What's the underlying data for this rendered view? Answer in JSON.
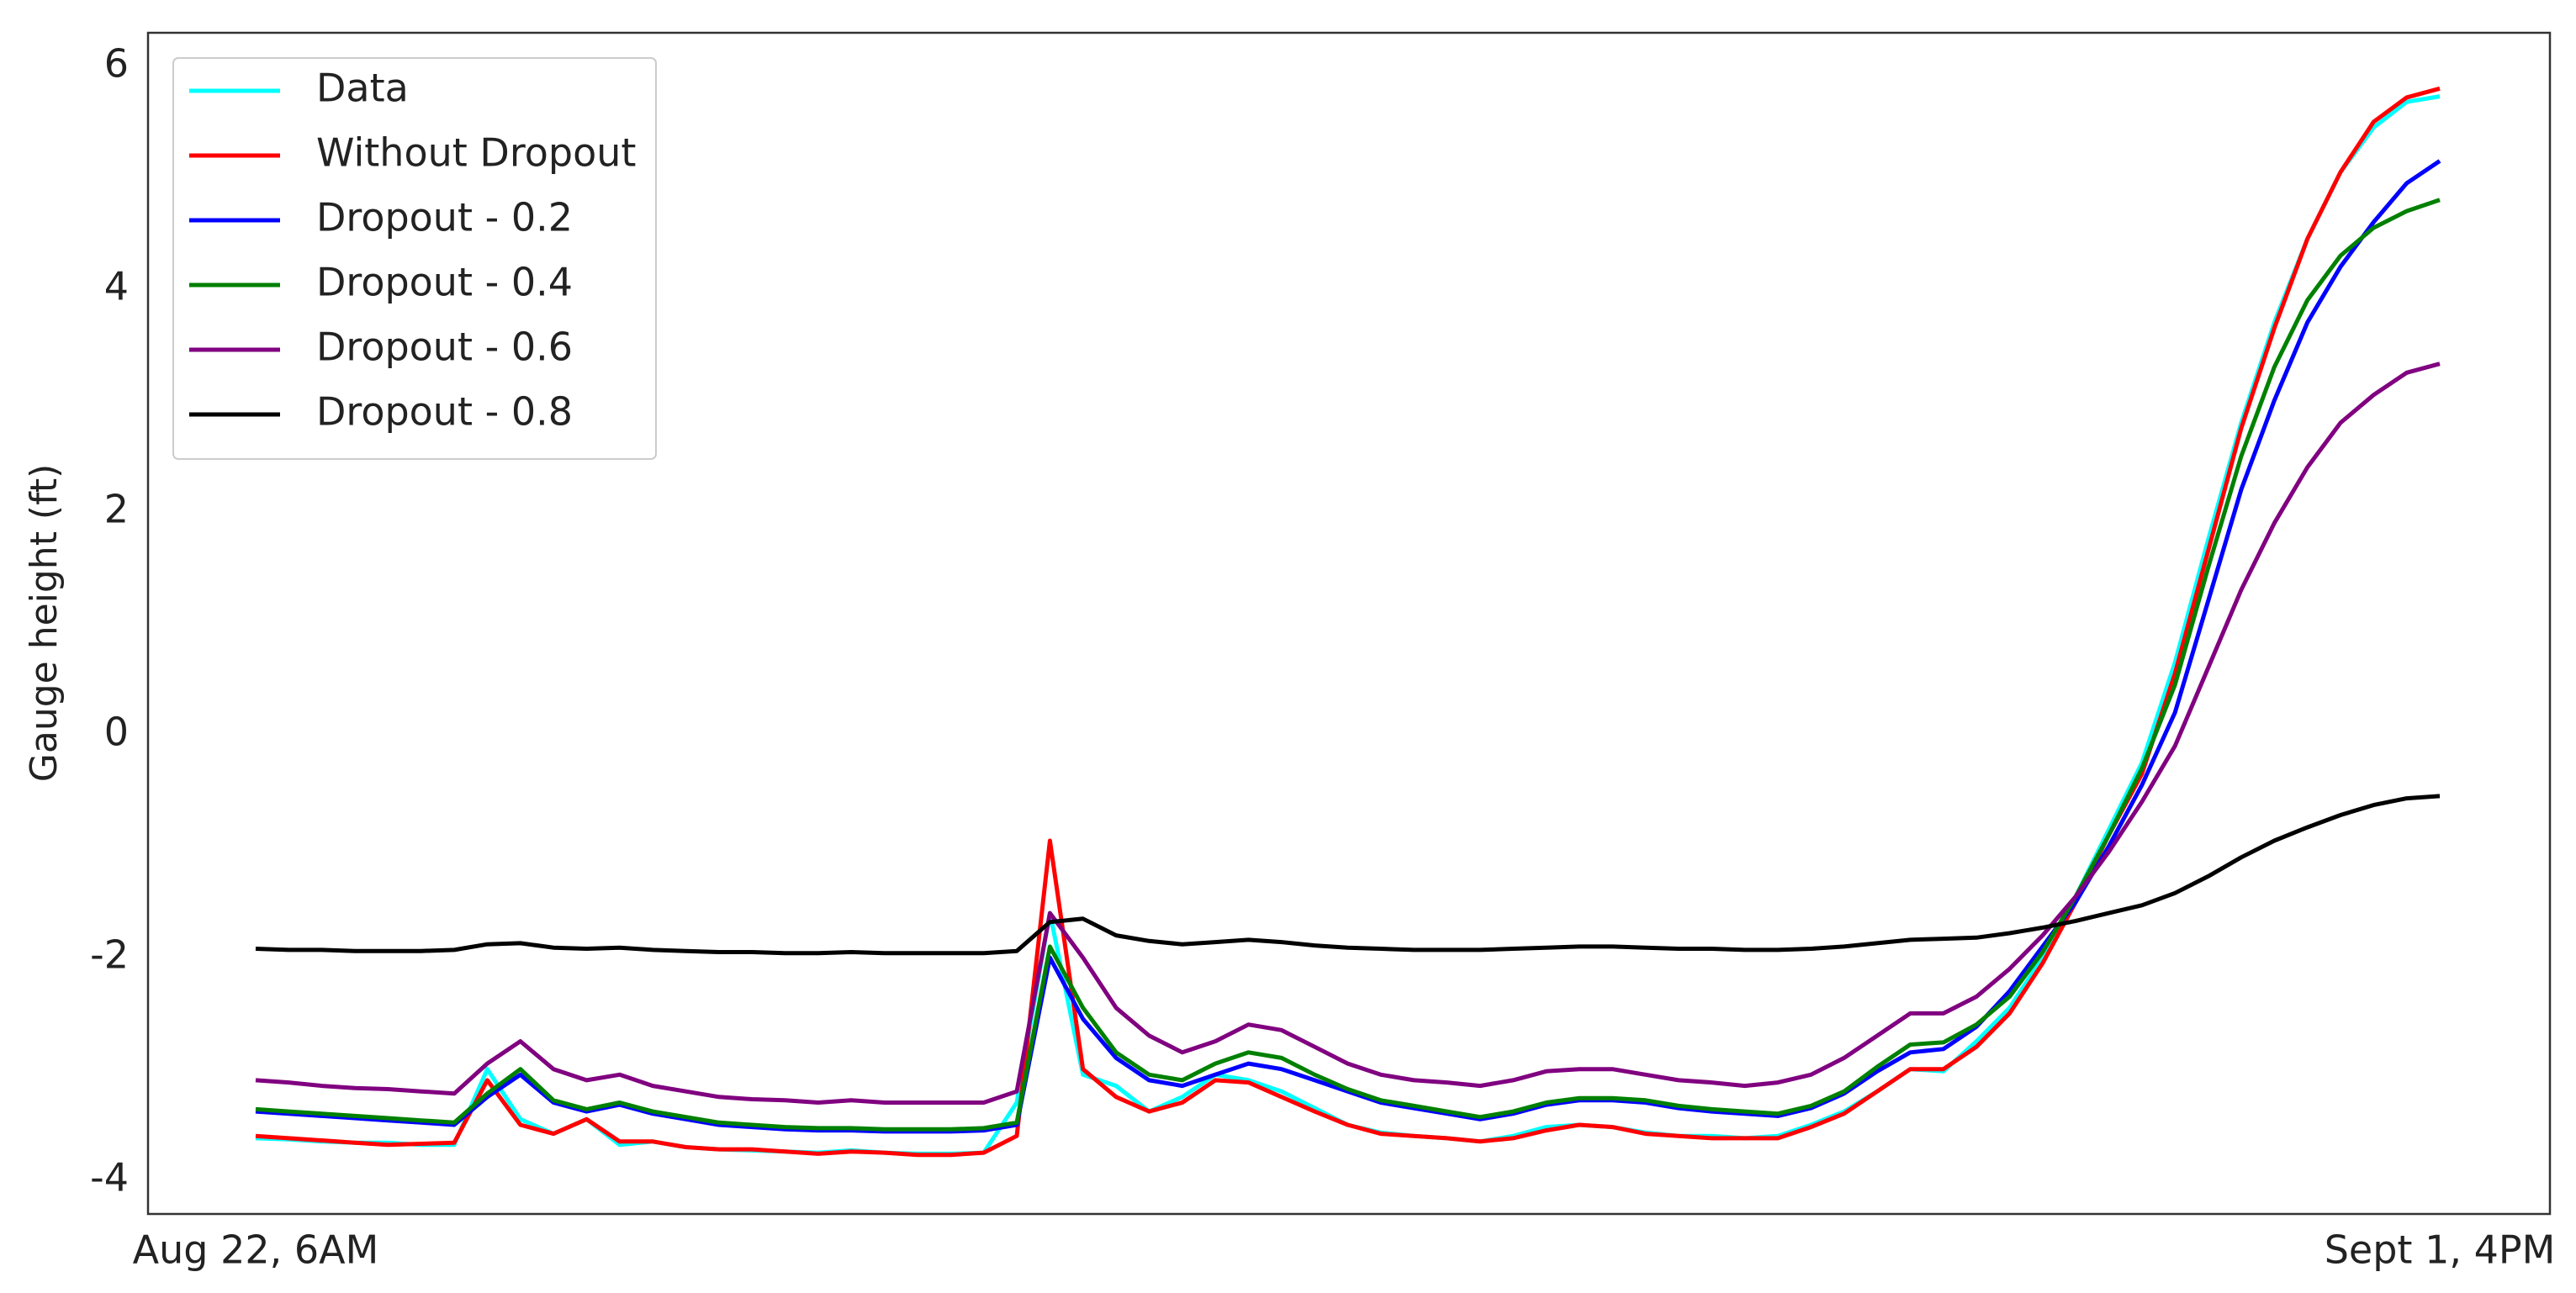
{
  "chart_data": {
    "type": "line",
    "y_label": "Gauge height (ft)",
    "categories": [
      "Aug 22, 6AM",
      null,
      null,
      null,
      null,
      null,
      null,
      null,
      null,
      null,
      null,
      null,
      null,
      null,
      null,
      null,
      null,
      null,
      null,
      null,
      null,
      null,
      null,
      null,
      null,
      null,
      null,
      null,
      null,
      null,
      null,
      null,
      null,
      null,
      null,
      null,
      null,
      null,
      null,
      null,
      null,
      null,
      null,
      null,
      null,
      null,
      null,
      null,
      null,
      null,
      null,
      null,
      null,
      null,
      null,
      null,
      null,
      null,
      null,
      null,
      null,
      null,
      null,
      null,
      null,
      null,
      "Sept 1, 4PM"
    ],
    "ylim": [
      -4.3,
      6.3
    ],
    "yticks": [
      -4,
      -2,
      0,
      2,
      4,
      6
    ],
    "grid": false,
    "legend": "upper left",
    "series": [
      {
        "name": "Data",
        "color": "#00ffff",
        "values": [
          -3.62,
          -3.63,
          -3.65,
          -3.66,
          -3.66,
          -3.68,
          -3.68,
          -3.0,
          -3.45,
          -3.58,
          -3.45,
          -3.68,
          -3.65,
          -3.7,
          -3.72,
          -3.73,
          -3.74,
          -3.75,
          -3.73,
          -3.75,
          -3.76,
          -3.76,
          -3.75,
          -3.3,
          -1.6,
          -3.05,
          -3.15,
          -3.38,
          -3.25,
          -3.05,
          -3.1,
          -3.2,
          -3.35,
          -3.5,
          -3.57,
          -3.6,
          -3.62,
          -3.65,
          -3.6,
          -3.52,
          -3.5,
          -3.52,
          -3.57,
          -3.6,
          -3.6,
          -3.62,
          -3.6,
          -3.5,
          -3.38,
          -3.2,
          -3.0,
          -3.02,
          -2.75,
          -2.45,
          -2.0,
          -1.45,
          -0.85,
          -0.25,
          0.65,
          1.75,
          2.8,
          3.7,
          4.45,
          5.05,
          5.45,
          5.68,
          5.73
        ]
      },
      {
        "name": "Without Dropout",
        "color": "#ff0000",
        "values": [
          -3.6,
          -3.62,
          -3.64,
          -3.66,
          -3.68,
          -3.67,
          -3.66,
          -3.1,
          -3.5,
          -3.58,
          -3.45,
          -3.65,
          -3.65,
          -3.7,
          -3.72,
          -3.72,
          -3.74,
          -3.76,
          -3.74,
          -3.75,
          -3.77,
          -3.77,
          -3.75,
          -3.6,
          -0.95,
          -3.0,
          -3.25,
          -3.38,
          -3.3,
          -3.1,
          -3.12,
          -3.25,
          -3.38,
          -3.5,
          -3.58,
          -3.6,
          -3.62,
          -3.65,
          -3.62,
          -3.55,
          -3.5,
          -3.52,
          -3.58,
          -3.6,
          -3.62,
          -3.62,
          -3.62,
          -3.52,
          -3.4,
          -3.2,
          -3.0,
          -3.0,
          -2.8,
          -2.5,
          -2.05,
          -1.5,
          -0.9,
          -0.35,
          0.55,
          1.65,
          2.75,
          3.65,
          4.45,
          5.05,
          5.5,
          5.72,
          5.8
        ]
      },
      {
        "name": "Dropout - 0.2",
        "color": "#0000ff",
        "values": [
          -3.38,
          -3.4,
          -3.42,
          -3.44,
          -3.46,
          -3.48,
          -3.5,
          -3.25,
          -3.05,
          -3.3,
          -3.38,
          -3.32,
          -3.4,
          -3.45,
          -3.5,
          -3.52,
          -3.54,
          -3.55,
          -3.55,
          -3.56,
          -3.56,
          -3.56,
          -3.55,
          -3.5,
          -2.0,
          -2.55,
          -2.9,
          -3.1,
          -3.15,
          -3.05,
          -2.95,
          -3.0,
          -3.1,
          -3.2,
          -3.3,
          -3.35,
          -3.4,
          -3.45,
          -3.4,
          -3.32,
          -3.28,
          -3.28,
          -3.3,
          -3.35,
          -3.38,
          -3.4,
          -3.42,
          -3.35,
          -3.22,
          -3.02,
          -2.85,
          -2.82,
          -2.62,
          -2.3,
          -1.9,
          -1.5,
          -1.0,
          -0.45,
          0.2,
          1.2,
          2.2,
          3.0,
          3.7,
          4.2,
          4.6,
          4.95,
          5.15
        ]
      },
      {
        "name": "Dropout - 0.4",
        "color": "#008000",
        "values": [
          -3.36,
          -3.38,
          -3.4,
          -3.42,
          -3.44,
          -3.46,
          -3.48,
          -3.22,
          -3.0,
          -3.28,
          -3.36,
          -3.3,
          -3.38,
          -3.43,
          -3.48,
          -3.5,
          -3.52,
          -3.53,
          -3.53,
          -3.54,
          -3.54,
          -3.54,
          -3.53,
          -3.48,
          -1.9,
          -2.45,
          -2.85,
          -3.05,
          -3.1,
          -2.95,
          -2.85,
          -2.9,
          -3.05,
          -3.18,
          -3.28,
          -3.33,
          -3.38,
          -3.43,
          -3.38,
          -3.3,
          -3.26,
          -3.26,
          -3.28,
          -3.33,
          -3.36,
          -3.38,
          -3.4,
          -3.33,
          -3.2,
          -2.98,
          -2.78,
          -2.76,
          -2.6,
          -2.35,
          -1.95,
          -1.45,
          -0.9,
          -0.3,
          0.45,
          1.5,
          2.5,
          3.3,
          3.9,
          4.3,
          4.55,
          4.7,
          4.8
        ]
      },
      {
        "name": "Dropout - 0.6",
        "color": "#800080",
        "values": [
          -3.1,
          -3.12,
          -3.15,
          -3.17,
          -3.18,
          -3.2,
          -3.22,
          -2.95,
          -2.75,
          -3.0,
          -3.1,
          -3.05,
          -3.15,
          -3.2,
          -3.25,
          -3.27,
          -3.28,
          -3.3,
          -3.28,
          -3.3,
          -3.3,
          -3.3,
          -3.3,
          -3.2,
          -1.6,
          -2.0,
          -2.45,
          -2.7,
          -2.85,
          -2.75,
          -2.6,
          -2.65,
          -2.8,
          -2.95,
          -3.05,
          -3.1,
          -3.12,
          -3.15,
          -3.1,
          -3.02,
          -3.0,
          -3.0,
          -3.05,
          -3.1,
          -3.12,
          -3.15,
          -3.12,
          -3.05,
          -2.9,
          -2.7,
          -2.5,
          -2.5,
          -2.35,
          -2.1,
          -1.8,
          -1.45,
          -1.05,
          -0.6,
          -0.1,
          0.6,
          1.3,
          1.9,
          2.4,
          2.8,
          3.05,
          3.25,
          3.33
        ]
      },
      {
        "name": "Dropout - 0.8",
        "color": "#000000",
        "values": [
          -1.92,
          -1.93,
          -1.93,
          -1.94,
          -1.94,
          -1.94,
          -1.93,
          -1.88,
          -1.87,
          -1.91,
          -1.92,
          -1.91,
          -1.93,
          -1.94,
          -1.95,
          -1.95,
          -1.96,
          -1.96,
          -1.95,
          -1.96,
          -1.96,
          -1.96,
          -1.96,
          -1.94,
          -1.68,
          -1.65,
          -1.8,
          -1.85,
          -1.88,
          -1.86,
          -1.84,
          -1.86,
          -1.89,
          -1.91,
          -1.92,
          -1.93,
          -1.93,
          -1.93,
          -1.92,
          -1.91,
          -1.9,
          -1.9,
          -1.91,
          -1.92,
          -1.92,
          -1.93,
          -1.93,
          -1.92,
          -1.9,
          -1.87,
          -1.84,
          -1.83,
          -1.82,
          -1.78,
          -1.73,
          -1.67,
          -1.6,
          -1.53,
          -1.42,
          -1.27,
          -1.1,
          -0.95,
          -0.83,
          -0.72,
          -0.63,
          -0.57,
          -0.55
        ]
      }
    ]
  }
}
